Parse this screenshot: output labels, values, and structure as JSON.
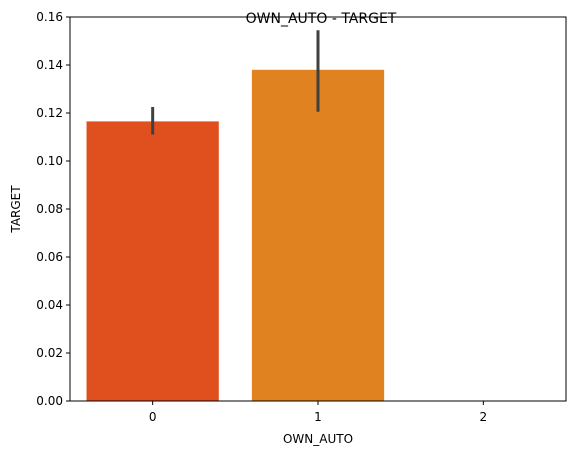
{
  "chart_data": {
    "type": "bar",
    "title": "OWN_AUTO - TARGET",
    "xlabel": "OWN_AUTO",
    "ylabel": "TARGET",
    "categories": [
      "0",
      "1",
      "2"
    ],
    "values": [
      0.1165,
      0.138,
      null
    ],
    "error_bars": [
      {
        "low": 0.111,
        "high": 0.1225
      },
      {
        "low": 0.1205,
        "high": 0.1545
      },
      null
    ],
    "bar_colors": [
      "#e0501f",
      "#e0821f",
      null
    ],
    "errorbar_color": "#404040",
    "ylim": [
      0,
      0.16
    ],
    "yticks": [
      "0.00",
      "0.02",
      "0.04",
      "0.06",
      "0.08",
      "0.10",
      "0.12",
      "0.14",
      "0.16"
    ],
    "ytick_values": [
      0,
      0.02,
      0.04,
      0.06,
      0.08,
      0.1,
      0.12,
      0.14,
      0.16
    ],
    "grid": false,
    "legend": "none"
  }
}
